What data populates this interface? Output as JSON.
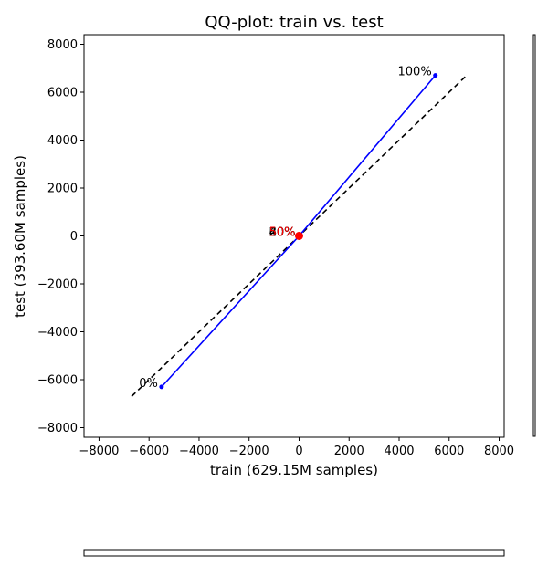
{
  "chart_data": {
    "type": "scatter",
    "title": "QQ-plot: train vs. test",
    "xlabel": "train (629.15M samples)",
    "ylabel": "test (393.60M samples)",
    "xlim": [
      -8600,
      8200
    ],
    "ylim": [
      -8400,
      8400
    ],
    "xticks": [
      -8000,
      -6000,
      -4000,
      -2000,
      0,
      2000,
      4000,
      6000,
      8000
    ],
    "yticks": [
      -8000,
      -6000,
      -4000,
      -2000,
      0,
      2000,
      4000,
      6000,
      8000
    ],
    "grid": false,
    "quantile_line": {
      "color": "#0000ff",
      "points": [
        {
          "x": -5500,
          "y": -6300
        },
        {
          "x": 0,
          "y": 0
        },
        {
          "x": 5450,
          "y": 6700
        }
      ]
    },
    "reference_line": {
      "color": "#000000",
      "style": "dashed",
      "from": {
        "x": -6700,
        "y": -6700
      },
      "to": {
        "x": 6700,
        "y": 6700
      }
    },
    "annotations": [
      {
        "text": "0%",
        "x": -5500,
        "y": -6300,
        "color": "#000000"
      },
      {
        "text": "100%",
        "x": 5450,
        "y": 6700,
        "color": "#000000"
      },
      {
        "text": "50%",
        "x": 0,
        "y": 0,
        "color": "#ff0000"
      }
    ],
    "center_labels": [
      "20%",
      "40%",
      "60%",
      "80%"
    ],
    "center_point": {
      "x": 0,
      "y": 0,
      "color": "#ff0000"
    }
  }
}
